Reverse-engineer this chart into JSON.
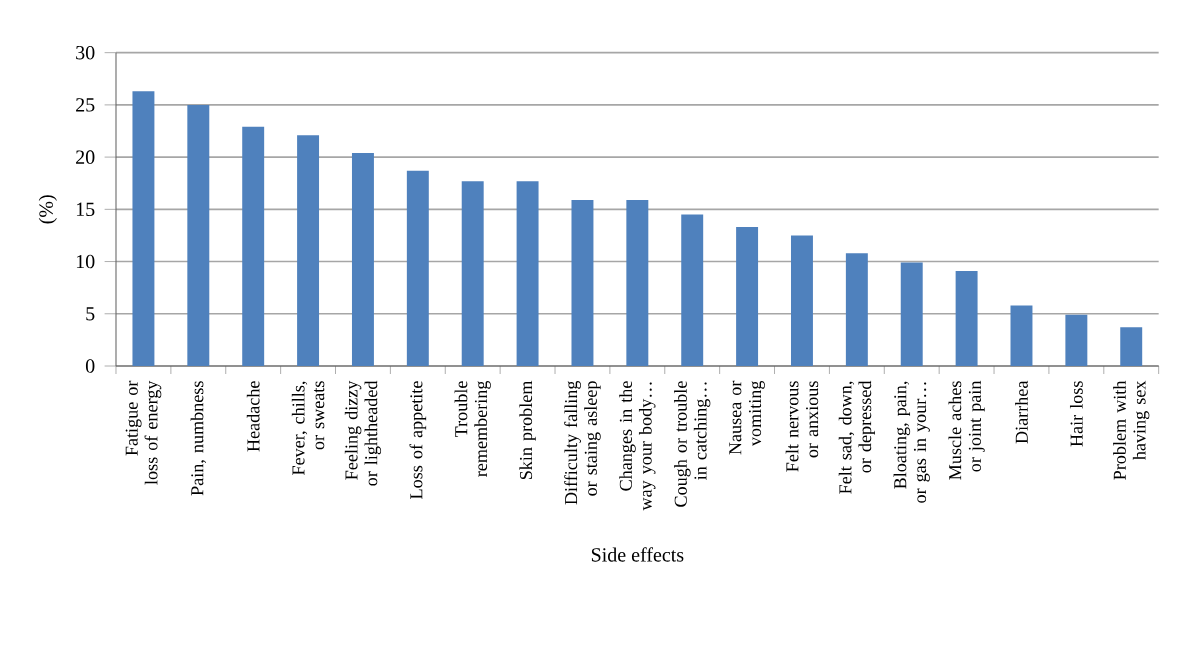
{
  "chart_data": {
    "type": "bar",
    "xlabel": "Side effects",
    "ylabel": "(%)",
    "categories": [
      "Fatigue or loss of energy",
      "Pain, numbness",
      "Headache",
      "Fever, chills, or sweats",
      "Feeling dizzy or lightheaded",
      "Loss of appetite",
      "Trouble remembering",
      "Skin problem",
      "Difficulty falling or staing asleep",
      "Changes in the way your body…",
      "Cough or trouble in catching…",
      "Nausea or vomiting",
      "Felt nervous or anxious",
      "Felt sad, down, or depressed",
      "Bloating, pain, or gas in your…",
      "Muscle aches or joint pain",
      "Diarrhea",
      "Hair loss",
      "Problem with having sex"
    ],
    "values": [
      26.3,
      25.0,
      22.9,
      22.1,
      20.4,
      18.7,
      17.7,
      17.7,
      15.9,
      15.9,
      14.5,
      13.3,
      12.5,
      10.8,
      9.9,
      9.1,
      5.8,
      4.9,
      3.7
    ],
    "color": "#4f81bd",
    "ylim": [
      0,
      30
    ],
    "yticks": [
      0,
      5,
      10,
      15,
      20,
      25,
      30
    ],
    "grid": "y"
  }
}
